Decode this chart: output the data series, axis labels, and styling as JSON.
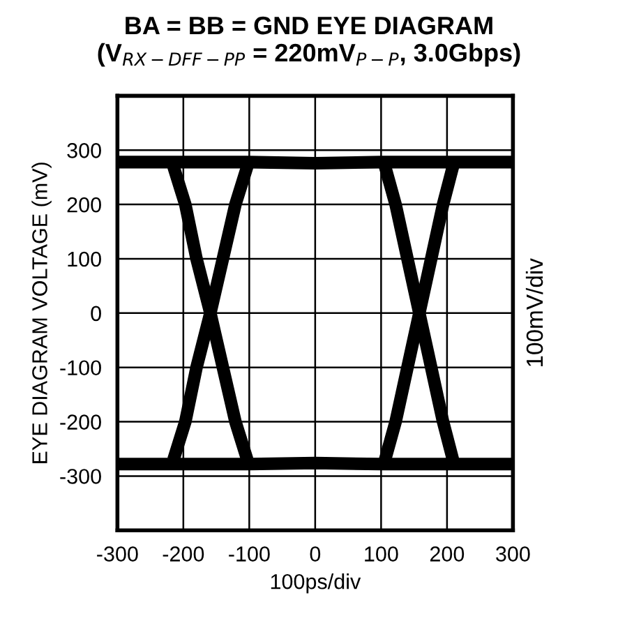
{
  "chart_data": {
    "type": "line",
    "title": "BA = BB = GND EYE DIAGRAM\n(V$_{RX−DFF−PP}$ = 220mV$_{P−P}$, 3.0Gbps)",
    "xlabel": "100ps/div",
    "ylabel": "EYE DIAGRAM VOLTAGE (mV)",
    "annotations": [
      "100mV/div"
    ],
    "xlim": [
      -300,
      300
    ],
    "ylim": [
      -400,
      400
    ],
    "xticks": [
      -300,
      -200,
      -100,
      0,
      100,
      200,
      300
    ],
    "yticks": [
      -300,
      -200,
      -100,
      0,
      100,
      200,
      300
    ],
    "grid": true,
    "marker": "none",
    "line_style": "solid",
    "series": [
      {
        "color": "#000000",
        "x": [
          -300,
          -200,
          -100,
          0,
          100,
          200,
          300
        ],
        "values": [
          278,
          278,
          278,
          276,
          278,
          278,
          278
        ]
      },
      {
        "color": "#000000",
        "x": [
          -300,
          -200,
          -100,
          0,
          100,
          200,
          300
        ],
        "values": [
          -278,
          -278,
          -278,
          -276,
          -278,
          -278,
          -278
        ]
      },
      {
        "color": "#000000",
        "x": [
          -215,
          -197,
          -180,
          -159,
          -140,
          -121,
          -103
        ],
        "values": [
          270,
          200,
          100,
          0,
          -100,
          -200,
          -270
        ]
      },
      {
        "color": "#000000",
        "x": [
          -215,
          -197,
          -180,
          -159,
          -140,
          -121,
          -103
        ],
        "values": [
          -270,
          -200,
          -100,
          0,
          100,
          200,
          270
        ]
      },
      {
        "color": "#000000",
        "x": [
          106,
          122,
          140,
          158,
          176,
          194,
          209
        ],
        "values": [
          270,
          200,
          100,
          0,
          -100,
          -200,
          -270
        ]
      },
      {
        "color": "#000000",
        "x": [
          106,
          122,
          140,
          158,
          176,
          194,
          209
        ],
        "values": [
          -270,
          -200,
          -100,
          0,
          100,
          200,
          270
        ]
      }
    ]
  }
}
